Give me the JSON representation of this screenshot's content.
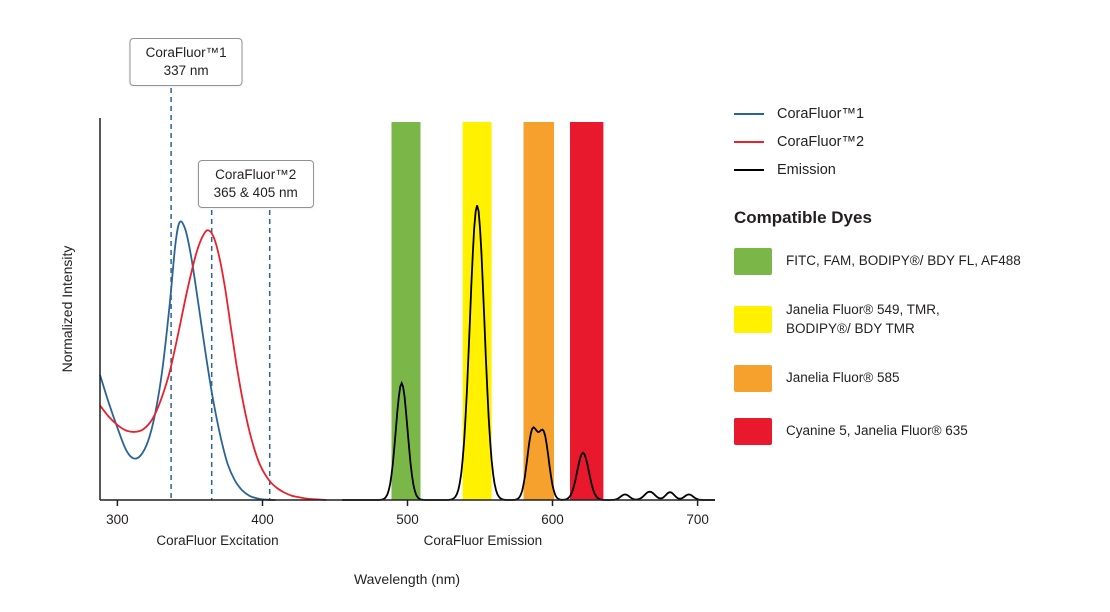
{
  "legend": {
    "items": [
      {
        "label": "CoraFluor™1",
        "color": "#2a6496"
      },
      {
        "label": "CoraFluor™2",
        "color": "#e8222d"
      },
      {
        "label": "Emission",
        "color": "#000000"
      }
    ]
  },
  "compatible_dyes": {
    "title": "Compatible Dyes",
    "items": [
      {
        "color": "#7ab648",
        "lines": [
          "FITC, FAM, BODIPY®/ BDY FL, AF488"
        ]
      },
      {
        "color": "#fff100",
        "lines": [
          "Janelia Fluor® 549, TMR,",
          "BODIPY®/ BDY TMR"
        ]
      },
      {
        "color": "#f6a12e",
        "lines": [
          "Janelia Fluor® 585"
        ]
      },
      {
        "color": "#e8192c",
        "lines": [
          "Cyanine 5, Janelia Fluor® 635"
        ]
      }
    ]
  },
  "chart_data": {
    "type": "line",
    "xlabel": "Wavelength (nm)",
    "ylabel": "Normalized Intensity",
    "x_axis": {
      "min": 288,
      "max": 712,
      "ticks": [
        300,
        400,
        500,
        600,
        700
      ]
    },
    "y_axis": {
      "min": 0,
      "max": 1.35,
      "gridlines": false
    },
    "region_labels": [
      {
        "text": "CoraFluor Excitation",
        "x": 369
      },
      {
        "text": "CoraFluor Emission",
        "x": 552
      }
    ],
    "filter_bands": [
      {
        "label": "FITC, FAM, BODIPY®/ BDY FL, AF488",
        "from": 489,
        "to": 509,
        "color": "#7ab648"
      },
      {
        "label": "Janelia Fluor® 549, TMR, BODIPY®/ BDY TMR",
        "from": 538,
        "to": 558,
        "color": "#fff100"
      },
      {
        "label": "Janelia Fluor® 585",
        "from": 580,
        "to": 601,
        "color": "#f6a12e"
      },
      {
        "label": "Cyanine 5, Janelia Fluor® 635",
        "from": 612,
        "to": 635,
        "color": "#e8192c"
      }
    ],
    "series": [
      {
        "name": "CoraFluor™1",
        "role": "excitation",
        "color": "#2a6496",
        "points": [
          [
            288,
            0.45
          ],
          [
            294,
            0.35
          ],
          [
            300,
            0.26
          ],
          [
            306,
            0.18
          ],
          [
            311,
            0.15
          ],
          [
            316,
            0.16
          ],
          [
            321,
            0.21
          ],
          [
            326,
            0.31
          ],
          [
            331,
            0.47
          ],
          [
            336,
            0.7
          ],
          [
            340,
            0.92
          ],
          [
            343,
            1.0
          ],
          [
            347,
            0.97
          ],
          [
            351,
            0.87
          ],
          [
            356,
            0.7
          ],
          [
            361,
            0.52
          ],
          [
            366,
            0.36
          ],
          [
            371,
            0.23
          ],
          [
            376,
            0.13
          ],
          [
            381,
            0.07
          ],
          [
            386,
            0.035
          ],
          [
            391,
            0.015
          ],
          [
            397,
            0.005
          ],
          [
            403,
            0.001
          ],
          [
            409,
            0
          ]
        ]
      },
      {
        "name": "CoraFluor™2",
        "role": "excitation",
        "color": "#e8222d",
        "points": [
          [
            288,
            0.34
          ],
          [
            294,
            0.3
          ],
          [
            300,
            0.27
          ],
          [
            306,
            0.25
          ],
          [
            312,
            0.245
          ],
          [
            318,
            0.255
          ],
          [
            324,
            0.29
          ],
          [
            330,
            0.36
          ],
          [
            336,
            0.46
          ],
          [
            342,
            0.6
          ],
          [
            348,
            0.75
          ],
          [
            354,
            0.88
          ],
          [
            358,
            0.94
          ],
          [
            362,
            0.97
          ],
          [
            366,
            0.95
          ],
          [
            370,
            0.88
          ],
          [
            374,
            0.77
          ],
          [
            378,
            0.63
          ],
          [
            382,
            0.49
          ],
          [
            386,
            0.37
          ],
          [
            390,
            0.27
          ],
          [
            394,
            0.19
          ],
          [
            398,
            0.13
          ],
          [
            402,
            0.09
          ],
          [
            406,
            0.062
          ],
          [
            410,
            0.043
          ],
          [
            415,
            0.027
          ],
          [
            420,
            0.016
          ],
          [
            426,
            0.009
          ],
          [
            432,
            0.004
          ],
          [
            438,
            0.002
          ],
          [
            444,
            0
          ]
        ]
      }
    ],
    "emission": {
      "name": "Emission",
      "color": "#000000",
      "peaks": [
        {
          "center": 496,
          "height": 0.42,
          "width": 4
        },
        {
          "center": 548,
          "height": 1.06,
          "width": 5
        },
        {
          "center": 586,
          "height": 0.24,
          "width": 3.5
        },
        {
          "center": 594,
          "height": 0.23,
          "width": 3.5
        },
        {
          "center": 621,
          "height": 0.17,
          "width": 4
        },
        {
          "center": 650,
          "height": 0.02,
          "width": 3
        },
        {
          "center": 667,
          "height": 0.03,
          "width": 3.5
        },
        {
          "center": 681,
          "height": 0.028,
          "width": 3
        },
        {
          "center": 694,
          "height": 0.02,
          "width": 3
        }
      ]
    },
    "annotations": [
      {
        "line1": "CoraFluor™1",
        "line2": "337 nm",
        "wavelengths": [
          337
        ]
      },
      {
        "line1": "CoraFluor™2",
        "line2": "365 & 405 nm",
        "wavelengths": [
          365,
          405
        ]
      }
    ],
    "annotation_line_color": "#2a6496",
    "axis_color": "#231f20"
  }
}
